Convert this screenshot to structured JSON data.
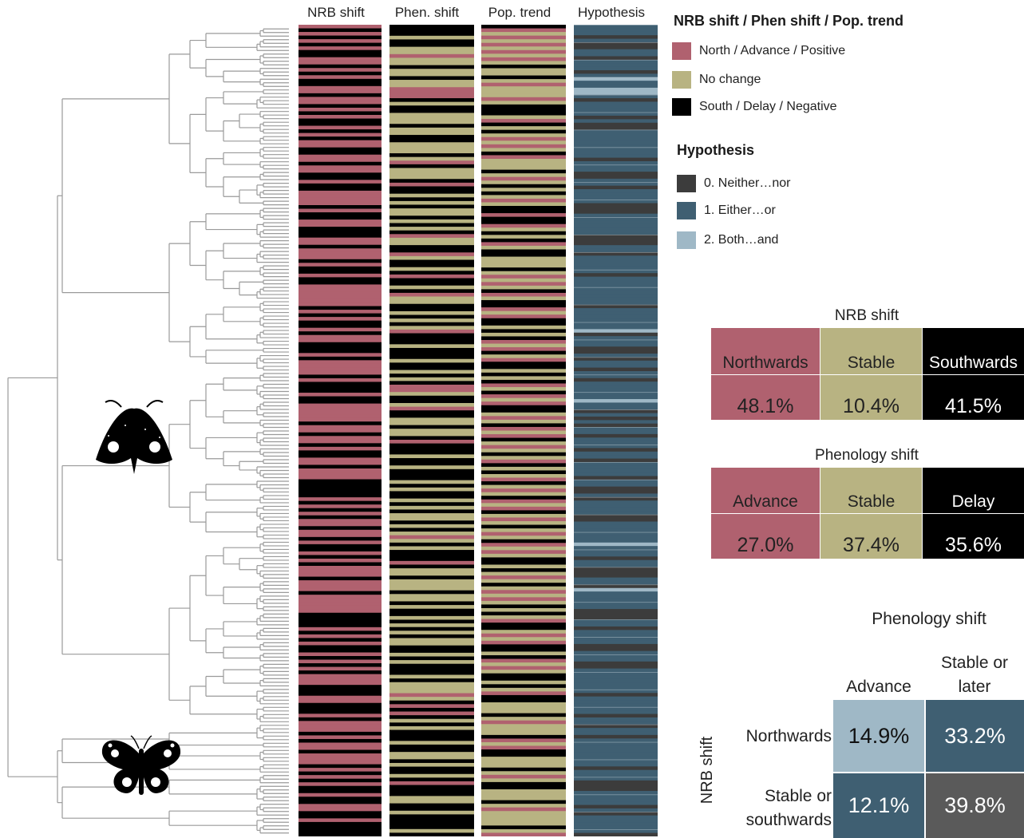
{
  "columns": [
    "NRB shift",
    "Phen. shift",
    "Pop. trend",
    "Hypothesis"
  ],
  "legend": {
    "shift_title": "NRB shift / Phen shift / Pop. trend",
    "shift_items": [
      {
        "label": "North / Advance / Positive",
        "color": "#b0616f"
      },
      {
        "label": "No change",
        "color": "#b8b382"
      },
      {
        "label": "South / Delay / Negative",
        "color": "#000000"
      }
    ],
    "hyp_title": "Hypothesis",
    "hyp_items": [
      {
        "label": "0. Neither…nor",
        "color": "#3c3c3c"
      },
      {
        "label": "1. Either…or",
        "color": "#3f5f72"
      },
      {
        "label": "2. Both…and",
        "color": "#9fb8c6"
      }
    ]
  },
  "nrb_table": {
    "title": "NRB shift",
    "labels": [
      "Northwards",
      "Stable",
      "Southwards"
    ],
    "values": [
      "48.1%",
      "10.4%",
      "41.5%"
    ]
  },
  "phen_table": {
    "title": "Phenology shift",
    "labels": [
      "Advance",
      "Stable",
      "Delay"
    ],
    "values": [
      "27.0%",
      "37.4%",
      "35.6%"
    ]
  },
  "matrix": {
    "col_title": "Phenology shift",
    "row_title": "NRB shift",
    "col_labels": [
      "Advance",
      "Stable or later"
    ],
    "row_labels": [
      "Northwards",
      "Stable or southwards"
    ],
    "cells": [
      [
        "14.9%",
        "33.2%"
      ],
      [
        "12.1%",
        "39.8%"
      ]
    ]
  },
  "colors": {
    "north": "#b0616f",
    "stable": "#b8b382",
    "south": "#000000",
    "hyp0": "#3c3c3c",
    "hyp1": "#3f5f72",
    "hyp2": "#9fb8c6",
    "matrix_dark": "#5a5a5a"
  },
  "stripes": {
    "nrb": "NSNSNSNSSNNSNSNSSNNSNNSNSNSSNSNSNNSSNNSNNSSNSSNNNNSNSSNNSSSNNSNNNSNSSNSSNNNNNNSNSNSSNSNNSSSNSNNNNSNSSSNSSNNNNNSNNSNNSNSSNNSNNNSSSSSNSNSNSNNSNNSNSSNSNSNNNSNNNSNNNNNSSSSNSNSNSSNSNSNSNNNSSSNNSSSNSNNNSNSNNSNNNSNSNSNSSNSSNNSSNSSSS",
    "phen": "SSSCSSCCACCSCCSCCAAASCSSCCCSCCSSCCCSCASCCCSASSCSCSCCSCSCSACCSSACSSCSASSCSACCSSCSCSCASSSCSSSCSSCSCSAACSSCASSCCSCCSASSSCSSCSSSCSCSSCSCSCCSCSCACSCSSSASCCSCCCSCCSCSSCSCSCSCCSSCSCSSSCSCCCACSASASCSCSSSCSSCCSCSSCSASSSCCSSCSSSSCS",
    "pop": "SPCPCPCPCPCSCCSCPCCCPCSSSCPSCSCPCPCSPCCCSCPCSCSCPCSSPSSPCSCSPCSSCCCSCPCPCSPCSSPCPSSCSCSPCPSCPSSCSCSPCSPCPSSCPCSPCPSCPCSCPSCSCPSCPCSPCPSCPCSCPCSPCPCSSCSCPCSCPCPCSCSCPSSCPCPSSCSPCPCSSCSCPSSCCCSCPCCCSPCPSSCCCSCPCSSCCCSCPCCCCSCP",
    "hyp": "1110100110111012112210111101001111111101110011011110001111110001101111101111111101111112011100101101101111121101010110111011011110110010111100111111211101100011021111100011011110011100111111101111101101101111111101110001111010111110"
  }
}
